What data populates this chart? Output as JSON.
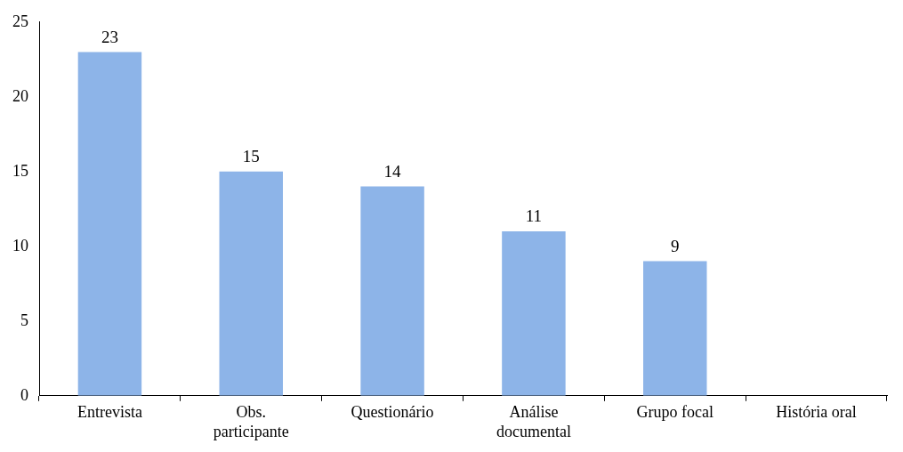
{
  "chart_data": {
    "type": "bar",
    "categories": [
      "Entrevista",
      "Obs. participante",
      "Questionário",
      "Análise documental",
      "Grupo focal",
      "História oral"
    ],
    "values": [
      23,
      15,
      14,
      11,
      9,
      0
    ],
    "value_labels": [
      "23",
      "15",
      "14",
      "11",
      "9",
      null
    ],
    "color": "#8db4e8",
    "ylim": [
      0,
      25
    ],
    "yticks": [
      0,
      5,
      10,
      15,
      20,
      25
    ],
    "grid": false,
    "legend": false
  }
}
